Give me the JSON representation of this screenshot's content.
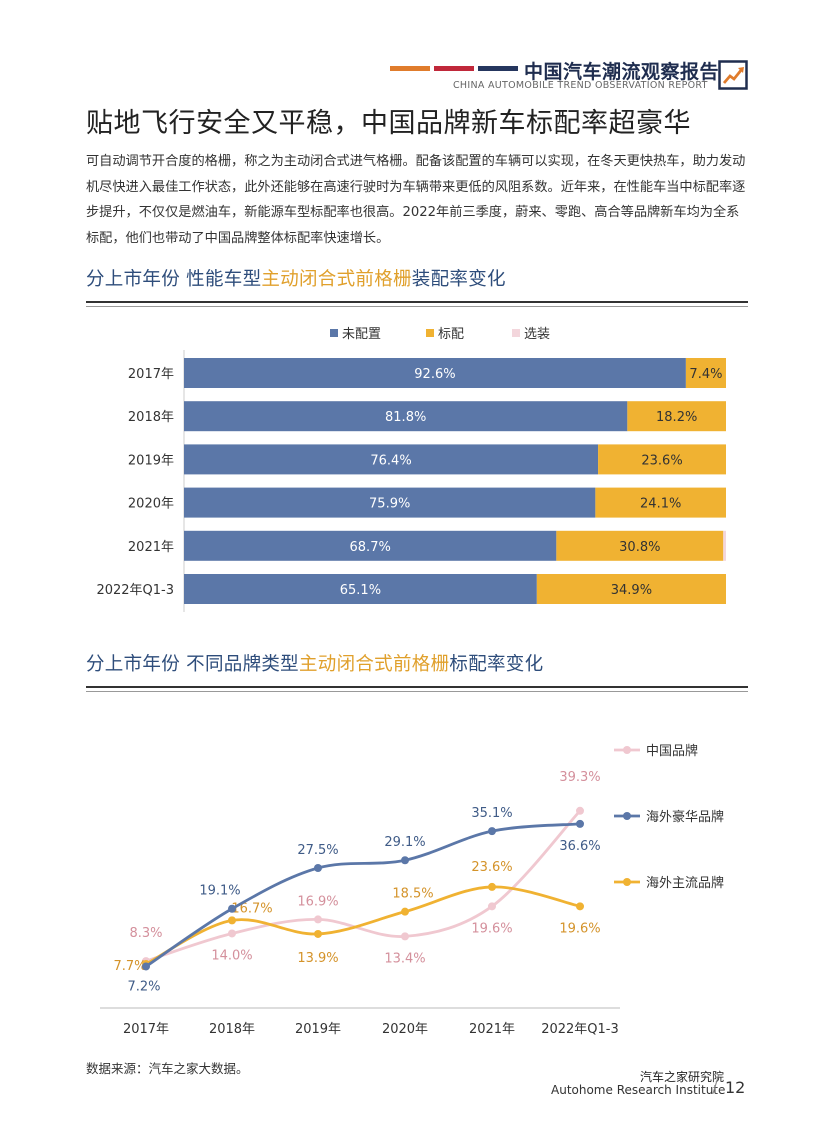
{
  "header": {
    "title": "中国汽车潮流观察报告",
    "subtitle": "CHINA AUTOMOBILE TREND OBSERVATION REPORT",
    "accent_colors": [
      "#e07c2c",
      "#c0283a",
      "#25365e"
    ]
  },
  "page_title": "贴地飞行安全又平稳，中国品牌新车标配率超豪华",
  "intro": "可自动调节开合度的格栅，称之为主动闭合式进气格栅。配备该配置的车辆可以实现，在冬天更快热车，助力发动机尽快进入最佳工作状态，此外还能够在高速行驶时为车辆带来更低的风阻系数。近年来，在性能车当中标配率逐步提升，不仅仅是燃油车，新能源车型标配率也很高。2022年前三季度，蔚来、零跑、高合等品牌新车均为全系标配，他们也带动了中国品牌整体标配率快速增长。",
  "section1": {
    "prefix": "分上市年份 性能车型",
    "highlight": "主动闭合式前格栅",
    "suffix": "装配率变化"
  },
  "section2": {
    "prefix": "分上市年份 不同品牌类型",
    "highlight": "主动闭合式前格栅",
    "suffix": "标配率变化"
  },
  "source": "数据来源：汽车之家大数据。",
  "footer": {
    "org_cn": "汽车之家研究院",
    "org_en": "Autohome Research Institute",
    "page": "12"
  },
  "chart_data": [
    {
      "type": "bar",
      "orientation": "horizontal",
      "stacked": true,
      "title": "分上市年份 性能车型主动闭合式前格栅装配率变化",
      "categories": [
        "2017年",
        "2018年",
        "2019年",
        "2020年",
        "2021年",
        "2022年Q1-3"
      ],
      "series": [
        {
          "name": "未配置",
          "color": "#5b77a8",
          "values": [
            92.6,
            81.8,
            76.4,
            75.9,
            68.7,
            65.1
          ],
          "labels": [
            "92.6%",
            "81.8%",
            "76.4%",
            "75.9%",
            "68.7%",
            "65.1%"
          ]
        },
        {
          "name": "标配",
          "color": "#f0b232",
          "values": [
            7.4,
            18.2,
            23.6,
            24.1,
            30.8,
            34.9
          ],
          "labels": [
            "7.4%",
            "18.2%",
            "23.6%",
            "24.1%",
            "30.8%",
            "34.9%"
          ]
        },
        {
          "name": "选装",
          "color": "#f3d6dc",
          "values": [
            0,
            0,
            0,
            0,
            0.5,
            0
          ],
          "labels": [
            "",
            "",
            "",
            "",
            "",
            ""
          ]
        }
      ],
      "xlim": [
        0,
        100
      ],
      "legend": "top"
    },
    {
      "type": "line",
      "smooth": true,
      "title": "分上市年份 不同品牌类型主动闭合式前格栅标配率变化",
      "categories": [
        "2017年",
        "2018年",
        "2019年",
        "2020年",
        "2021年",
        "2022年Q1-3"
      ],
      "series": [
        {
          "name": "中国品牌",
          "color": "#f0c8d0",
          "label_color": "#d4909c",
          "values": [
            8.3,
            14.0,
            16.9,
            13.4,
            19.6,
            39.3
          ],
          "labels": [
            "8.3%",
            "14.0%",
            "16.9%",
            "13.4%",
            "19.6%",
            "39.3%"
          ]
        },
        {
          "name": "海外豪华品牌",
          "color": "#5b77a8",
          "label_color": "#3f5b87",
          "values": [
            7.2,
            19.1,
            27.5,
            29.1,
            35.1,
            36.6
          ],
          "labels": [
            "7.2%",
            "19.1%",
            "27.5%",
            "29.1%",
            "35.1%",
            "36.6%"
          ]
        },
        {
          "name": "海外主流品牌",
          "color": "#f0b232",
          "label_color": "#d4932a",
          "values": [
            7.7,
            16.7,
            13.9,
            18.5,
            23.6,
            19.6
          ],
          "labels": [
            "7.7%",
            "16.7%",
            "13.9%",
            "18.5%",
            "23.6%",
            "19.6%"
          ]
        }
      ],
      "ylim": [
        0,
        45
      ],
      "legend": "right"
    }
  ]
}
